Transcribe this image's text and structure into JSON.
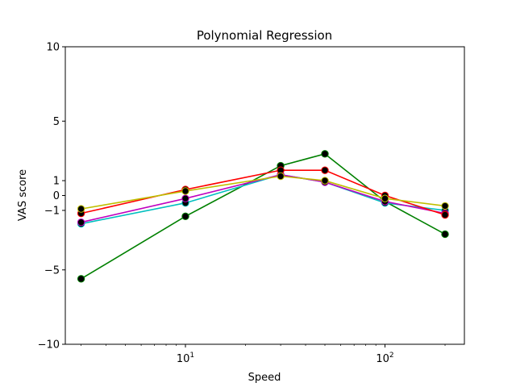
{
  "chart_data": {
    "type": "line",
    "title": "Polynomial Regression",
    "xlabel": "Speed",
    "ylabel": "VAS score",
    "x_scale": "log",
    "xlim": [
      2.5,
      250
    ],
    "ylim": [
      -10,
      10
    ],
    "x": [
      3,
      10,
      30,
      50,
      100,
      200
    ],
    "x_ticks": [
      {
        "value": 10,
        "base": "10",
        "exp": "1"
      },
      {
        "value": 100,
        "base": "10",
        "exp": "2"
      }
    ],
    "y_ticks": [
      {
        "value": 10,
        "label": "10"
      },
      {
        "value": 5,
        "label": "5"
      },
      {
        "value": 1,
        "label": "1"
      },
      {
        "value": 0,
        "label": "0"
      },
      {
        "value": -1,
        "label": "−1"
      },
      {
        "value": -5,
        "label": "−5"
      },
      {
        "value": -10,
        "label": "−10"
      }
    ],
    "grid": false,
    "legend": "none",
    "marker_color": "#000000",
    "series": [
      {
        "color": "#008000",
        "values": [
          -5.6,
          -1.4,
          2.0,
          2.8,
          -0.4,
          -2.6
        ]
      },
      {
        "color": "#00bfbf",
        "values": [
          -1.9,
          -0.5,
          1.4,
          0.9,
          -0.5,
          -1.0
        ]
      },
      {
        "color": "#bf00bf",
        "values": [
          -1.8,
          -0.2,
          1.4,
          0.9,
          -0.4,
          -1.2
        ]
      },
      {
        "color": "#ff0000",
        "values": [
          -1.2,
          0.4,
          1.7,
          1.7,
          0.0,
          -1.3
        ]
      },
      {
        "color": "#bfbf00",
        "values": [
          -0.9,
          0.3,
          1.3,
          1.0,
          -0.2,
          -0.7
        ]
      }
    ]
  }
}
